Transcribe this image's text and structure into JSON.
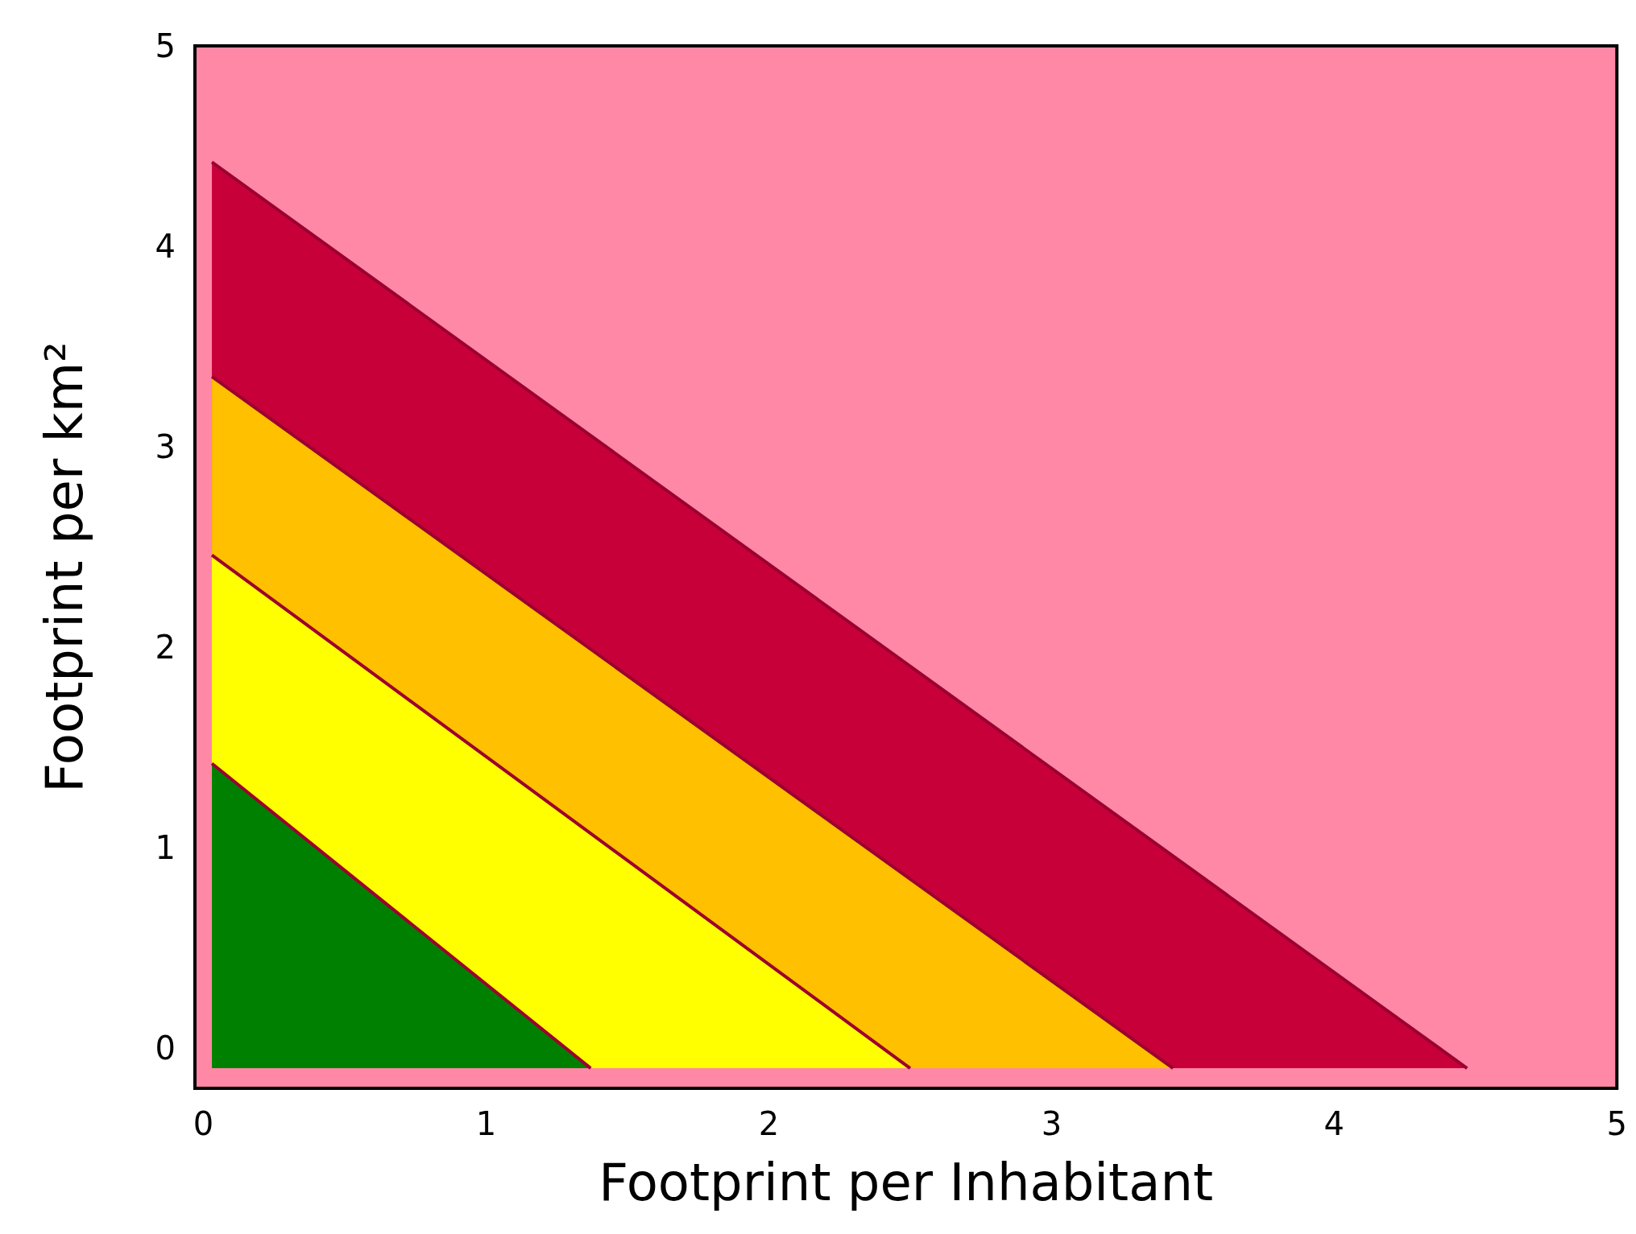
{
  "chart_data": {
    "type": "area",
    "xlabel": "Footprint per Inhabitant",
    "ylabel": "Footprint per km²",
    "xlim": [
      -0.03,
      5
    ],
    "ylim": [
      -0.2,
      5
    ],
    "xticks": [
      0,
      1,
      2,
      3,
      4,
      5
    ],
    "yticks": [
      0,
      1,
      2,
      3,
      4,
      5
    ],
    "grid": false,
    "bands": [
      {
        "axis": "x",
        "from": -0.03,
        "to": 5,
        "color": "#ff88a6"
      }
    ],
    "series": [
      {
        "color": "#c8003a",
        "x": [
          0.03,
          4.47
        ],
        "values": [
          4.42,
          -0.1
        ]
      },
      {
        "color": "#ffc000",
        "x": [
          0.03,
          3.43
        ],
        "values": [
          3.35,
          -0.1
        ]
      },
      {
        "color": "#ffff00",
        "x": [
          0.03,
          2.5
        ],
        "values": [
          2.46,
          -0.1
        ]
      },
      {
        "color": "#008000",
        "x": [
          0.03,
          1.37
        ],
        "values": [
          1.42,
          -0.1
        ]
      }
    ]
  }
}
